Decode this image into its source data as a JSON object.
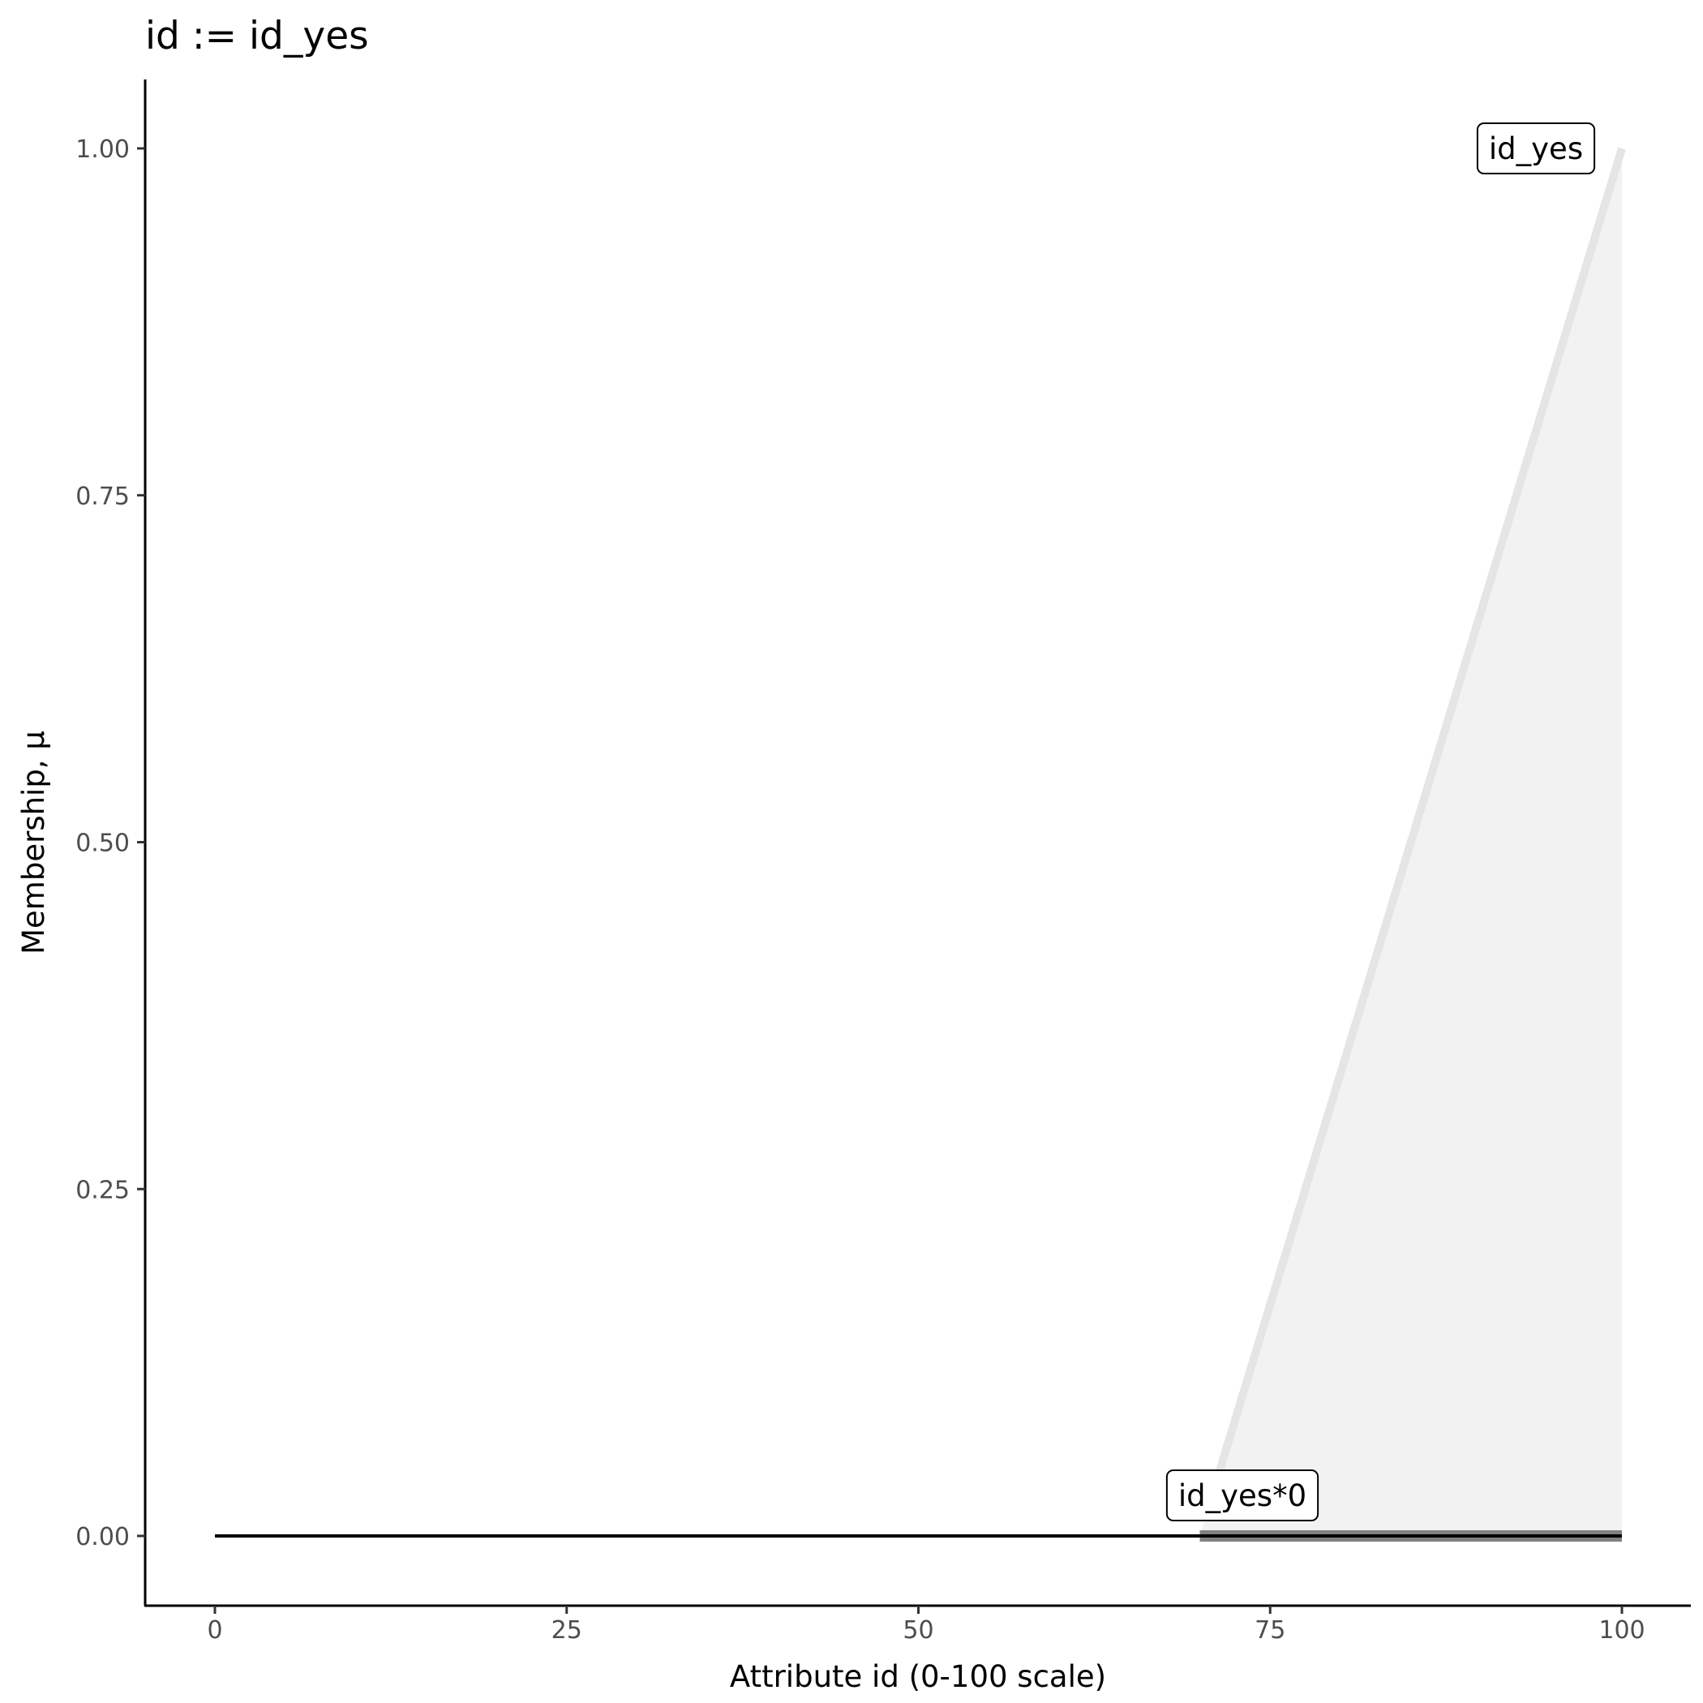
{
  "chart_data": {
    "type": "line",
    "title": "id := id_yes",
    "xlabel": "Attribute id (0-100 scale)",
    "ylabel": "Membership, μ",
    "xlim": [
      -5,
      105
    ],
    "ylim": [
      -0.05,
      1.05
    ],
    "xticks": [
      0,
      25,
      50,
      75,
      100
    ],
    "xtick_labels": [
      "0",
      "25",
      "50",
      "75",
      "100"
    ],
    "yticks": [
      0,
      0.25,
      0.5,
      0.75,
      1.0
    ],
    "ytick_labels": [
      "0.00",
      "0.25",
      "0.50",
      "0.75",
      "1.00"
    ],
    "grid": false,
    "series": [
      {
        "name": "id_yes",
        "x": [
          70,
          100
        ],
        "y": [
          0,
          1
        ],
        "color": "#e5e5e5",
        "fill": "#f2f2f2",
        "label_at": [
          95,
          1.0
        ]
      },
      {
        "name": "id_yes*0",
        "x": [
          70,
          100
        ],
        "y": [
          0,
          0
        ],
        "color": "#808080",
        "label_at": [
          72,
          0.03
        ]
      },
      {
        "x": [
          0,
          100
        ],
        "y": [
          0,
          0
        ],
        "color": "#000000"
      }
    ]
  }
}
